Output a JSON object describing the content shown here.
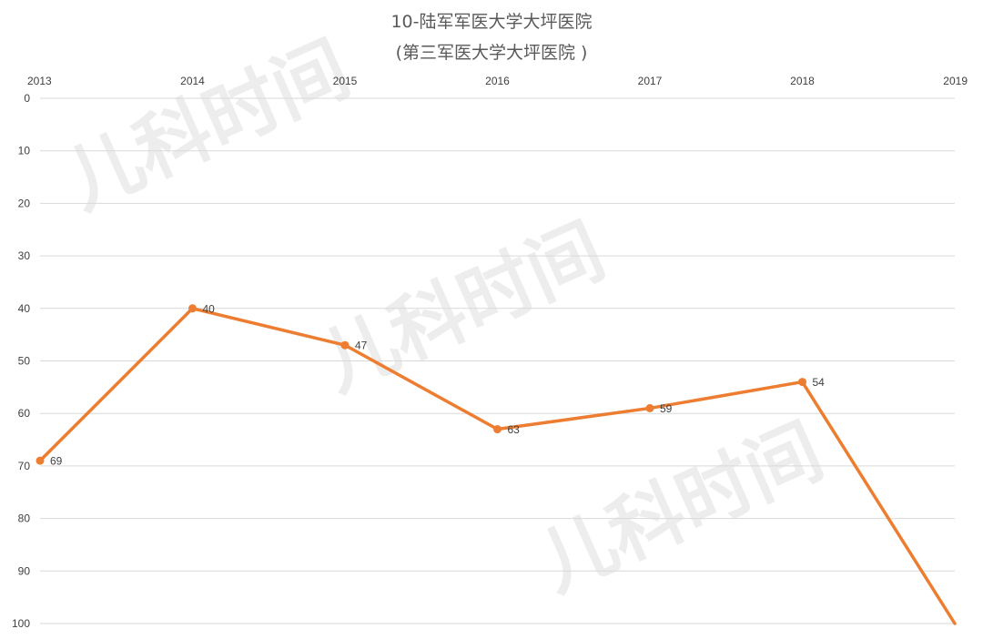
{
  "chart_data": {
    "type": "line",
    "title": "10-陆军军医大学大坪医院",
    "subtitle": "(第三军医大学大坪医院 )",
    "xlabel": "",
    "ylabel": "",
    "x": [
      "2013",
      "2014",
      "2015",
      "2016",
      "2017",
      "2018",
      "2019"
    ],
    "y_ticks": [
      "0",
      "10",
      "20",
      "30",
      "40",
      "50",
      "60",
      "70",
      "80",
      "90",
      "100"
    ],
    "ylim": [
      0,
      100
    ],
    "y_axis_reversed": true,
    "x_axis_position": "top",
    "grid": true,
    "legend": "none",
    "series": [
      {
        "values": [
          69,
          40,
          47,
          63,
          59,
          54,
          100
        ],
        "data_labels": [
          "69",
          "40",
          "47",
          "63",
          "59",
          "54",
          ""
        ],
        "markers": [
          true,
          true,
          true,
          true,
          true,
          true,
          false
        ],
        "color": "#ED7D31"
      }
    ]
  },
  "watermark": {
    "text": "儿科时间",
    "color": "#000000"
  },
  "colors": {
    "gridline": "#D9D9D9",
    "text": "#404040",
    "title": "#595959"
  }
}
